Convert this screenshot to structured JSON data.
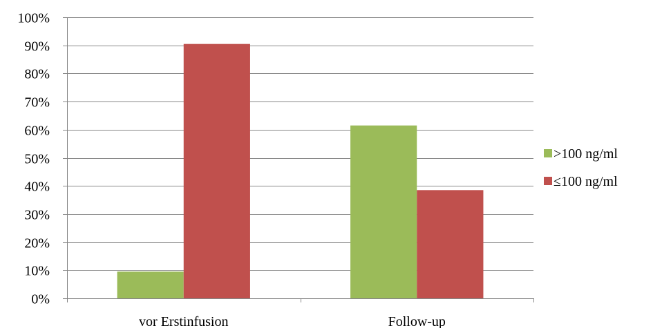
{
  "chart_data": {
    "type": "bar",
    "categories": [
      "vor Erstinfusion",
      "Follow-up"
    ],
    "series": [
      {
        "name": ">100 ng/ml",
        "values": [
          9.5,
          61.5
        ],
        "color": "#9BBB59"
      },
      {
        "name": "≤100 ng/ml",
        "values": [
          90.5,
          38.5
        ],
        "color": "#C0504D"
      }
    ],
    "ylim": [
      0,
      100
    ],
    "yticks": [
      0,
      10,
      20,
      30,
      40,
      50,
      60,
      70,
      80,
      90,
      100
    ],
    "ytick_labels": [
      "0%",
      "10%",
      "20%",
      "30%",
      "40%",
      "50%",
      "60%",
      "70%",
      "80%",
      "90%",
      "100%"
    ],
    "grid": true,
    "legend_position": "right",
    "title": "",
    "xlabel": "",
    "ylabel": ""
  }
}
